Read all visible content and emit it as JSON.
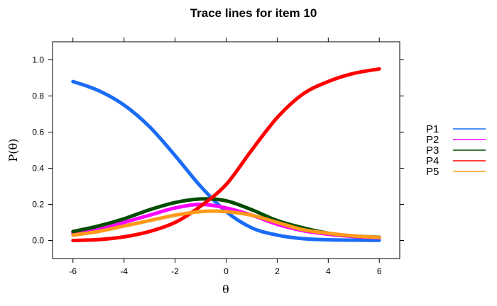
{
  "chart_data": {
    "type": "line",
    "title": "Trace lines for item 10",
    "xlabel": "θ",
    "ylabel": "P(θ)",
    "xlim": [
      -6.8,
      6.8
    ],
    "ylim": [
      -0.1,
      1.1
    ],
    "xticks": [
      -6,
      -4,
      -2,
      0,
      2,
      4,
      6
    ],
    "yticks": [
      0.0,
      0.2,
      0.4,
      0.6,
      0.8,
      1.0
    ],
    "xtick_labels": [
      "-6",
      "-4",
      "-2",
      "0",
      "2",
      "4",
      "6"
    ],
    "ytick_labels": [
      "0.0",
      "0.2",
      "0.4",
      "0.6",
      "0.8",
      "1.0"
    ],
    "grid": false,
    "legend_position": "right",
    "x": [
      -6,
      -5,
      -4,
      -3,
      -2,
      -1,
      0,
      1,
      2,
      3,
      4,
      5,
      6
    ],
    "series": [
      {
        "name": "P1",
        "color": "#1a6cf7",
        "values": [
          0.88,
          0.83,
          0.75,
          0.63,
          0.47,
          0.3,
          0.16,
          0.07,
          0.03,
          0.01,
          0.004,
          0.002,
          0.001
        ]
      },
      {
        "name": "P2",
        "color": "#ff00ff",
        "values": [
          0.04,
          0.06,
          0.1,
          0.14,
          0.18,
          0.2,
          0.18,
          0.14,
          0.09,
          0.055,
          0.035,
          0.022,
          0.015
        ]
      },
      {
        "name": "P3",
        "color": "#004d00",
        "values": [
          0.05,
          0.08,
          0.12,
          0.17,
          0.21,
          0.23,
          0.22,
          0.17,
          0.11,
          0.07,
          0.04,
          0.025,
          0.018
        ]
      },
      {
        "name": "P4",
        "color": "#ff0000",
        "values": [
          0.0,
          0.005,
          0.02,
          0.05,
          0.1,
          0.19,
          0.31,
          0.5,
          0.68,
          0.81,
          0.88,
          0.925,
          0.95
        ]
      },
      {
        "name": "P5",
        "color": "#ff9a1a",
        "values": [
          0.03,
          0.05,
          0.08,
          0.11,
          0.14,
          0.16,
          0.16,
          0.14,
          0.1,
          0.06,
          0.04,
          0.025,
          0.017
        ]
      }
    ]
  }
}
